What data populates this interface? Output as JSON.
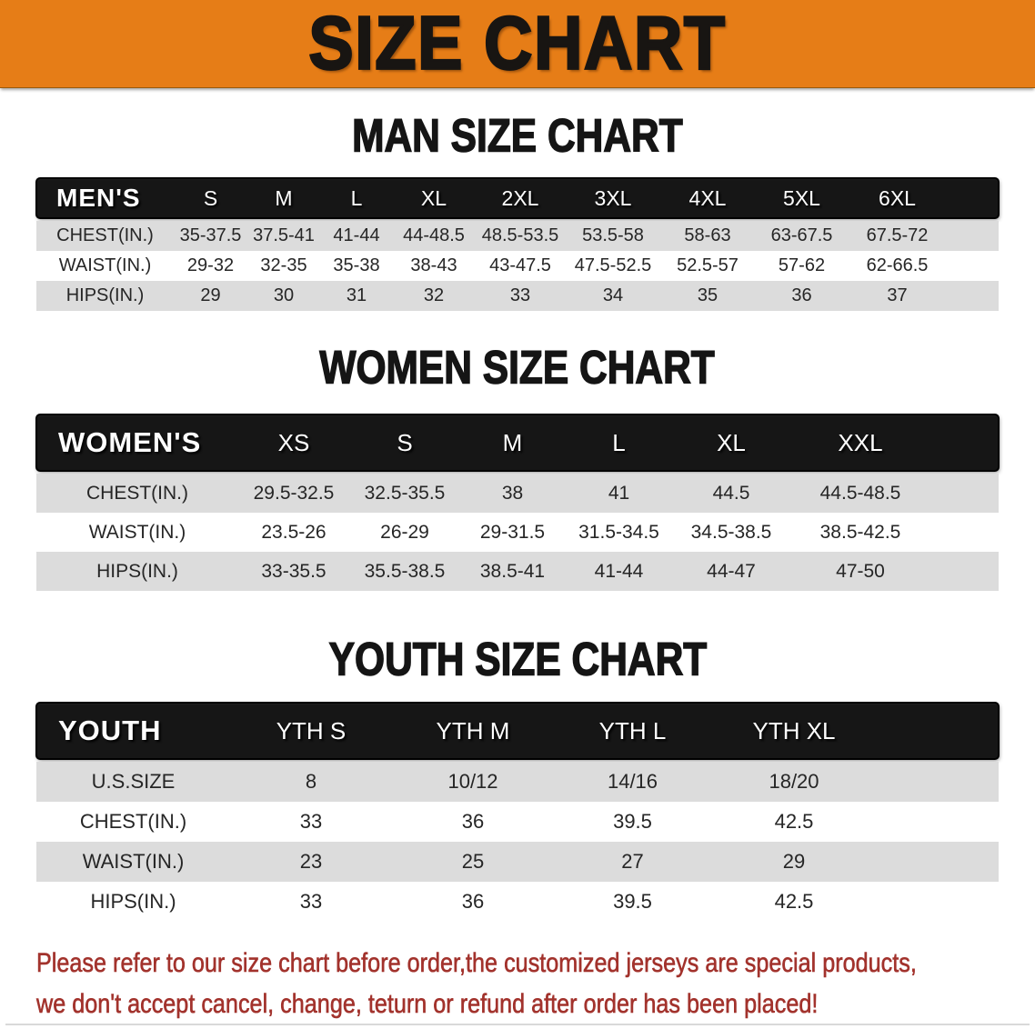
{
  "banner": {
    "title": "SIZE CHART"
  },
  "sections": [
    {
      "title": "MAN SIZE CHART",
      "table": {
        "label": "MEN'S",
        "columns": [
          "S",
          "M",
          "L",
          "XL",
          "2XL",
          "3XL",
          "4XL",
          "5XL",
          "6XL"
        ],
        "rows": [
          {
            "label": "CHEST(IN.)",
            "values": [
              "35-37.5",
              "37.5-41",
              "41-44",
              "44-48.5",
              "48.5-53.5",
              "53.5-58",
              "58-63",
              "63-67.5",
              "67.5-72"
            ]
          },
          {
            "label": "WAIST(IN.)",
            "values": [
              "29-32",
              "32-35",
              "35-38",
              "38-43",
              "43-47.5",
              "47.5-52.5",
              "52.5-57",
              "57-62",
              "62-66.5"
            ]
          },
          {
            "label": "HIPS(IN.)",
            "values": [
              "29",
              "30",
              "31",
              "32",
              "33",
              "34",
              "35",
              "36",
              "37"
            ]
          }
        ]
      }
    },
    {
      "title": "WOMEN SIZE CHART",
      "table": {
        "label": "WOMEN'S",
        "columns": [
          "XS",
          "S",
          "M",
          "L",
          "XL",
          "XXL"
        ],
        "rows": [
          {
            "label": "CHEST(IN.)",
            "values": [
              "29.5-32.5",
              "32.5-35.5",
              "38",
              "41",
              "44.5",
              "44.5-48.5"
            ]
          },
          {
            "label": "WAIST(IN.)",
            "values": [
              "23.5-26",
              "26-29",
              "29-31.5",
              "31.5-34.5",
              "34.5-38.5",
              "38.5-42.5"
            ]
          },
          {
            "label": "HIPS(IN.)",
            "values": [
              "33-35.5",
              "35.5-38.5",
              "38.5-41",
              "41-44",
              "44-47",
              "47-50"
            ]
          }
        ]
      }
    },
    {
      "title": "YOUTH SIZE CHART",
      "table": {
        "label": "YOUTH",
        "columns": [
          "YTH S",
          "YTH M",
          "YTH L",
          "YTH XL"
        ],
        "rows": [
          {
            "label": "U.S.SIZE",
            "values": [
              "8",
              "10/12",
              "14/16",
              "18/20"
            ]
          },
          {
            "label": "CHEST(IN.)",
            "values": [
              "33",
              "36",
              "39.5",
              "42.5"
            ]
          },
          {
            "label": "WAIST(IN.)",
            "values": [
              "23",
              "25",
              "27",
              "29"
            ]
          },
          {
            "label": "HIPS(IN.)",
            "values": [
              "33",
              "36",
              "39.5",
              "42.5"
            ]
          }
        ]
      }
    }
  ],
  "footer": {
    "lines": [
      "Please refer to our size chart before order,the customized jerseys are special products,",
      "we don't accept cancel, change, teturn or refund after order has been placed!"
    ]
  },
  "colors": {
    "banner_bg": "#E67D17",
    "banner_text": "#181512",
    "bar_bg": "#161616",
    "bar_text": "#FFFFFF",
    "row_shade": "#DCDCDC",
    "row_white": "#FFFFFF",
    "note_red": "#A2322C",
    "title_black": "#151515"
  }
}
